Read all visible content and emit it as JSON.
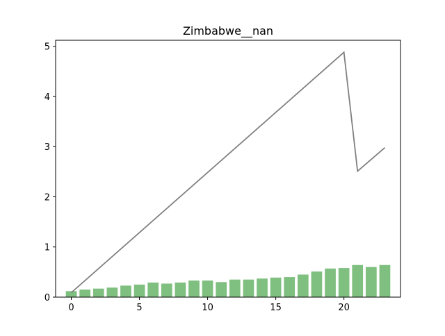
{
  "chart_data": {
    "type": "bar+line",
    "title": "Zimbabwe__nan",
    "xlabel": "",
    "ylabel": "",
    "xlim": [
      -1.15,
      24.15
    ],
    "ylim": [
      0,
      5.12
    ],
    "grid": false,
    "x_ticks": [
      0,
      5,
      10,
      15,
      20
    ],
    "y_ticks": [
      0,
      1,
      2,
      3,
      4,
      5
    ],
    "bar_color": "#7fbf7f",
    "line_color": "#808080",
    "bars": {
      "x": [
        0,
        1,
        2,
        3,
        4,
        5,
        6,
        7,
        8,
        9,
        10,
        11,
        12,
        13,
        14,
        15,
        16,
        17,
        18,
        19,
        20,
        21,
        22,
        23
      ],
      "values": [
        0.12,
        0.15,
        0.17,
        0.19,
        0.23,
        0.25,
        0.29,
        0.27,
        0.29,
        0.33,
        0.33,
        0.3,
        0.35,
        0.35,
        0.37,
        0.39,
        0.4,
        0.45,
        0.51,
        0.57,
        0.58,
        0.64,
        0.6,
        0.64
      ]
    },
    "line": {
      "x": [
        0,
        20,
        21,
        23
      ],
      "values": [
        0.09,
        4.88,
        2.51,
        2.98
      ]
    }
  }
}
